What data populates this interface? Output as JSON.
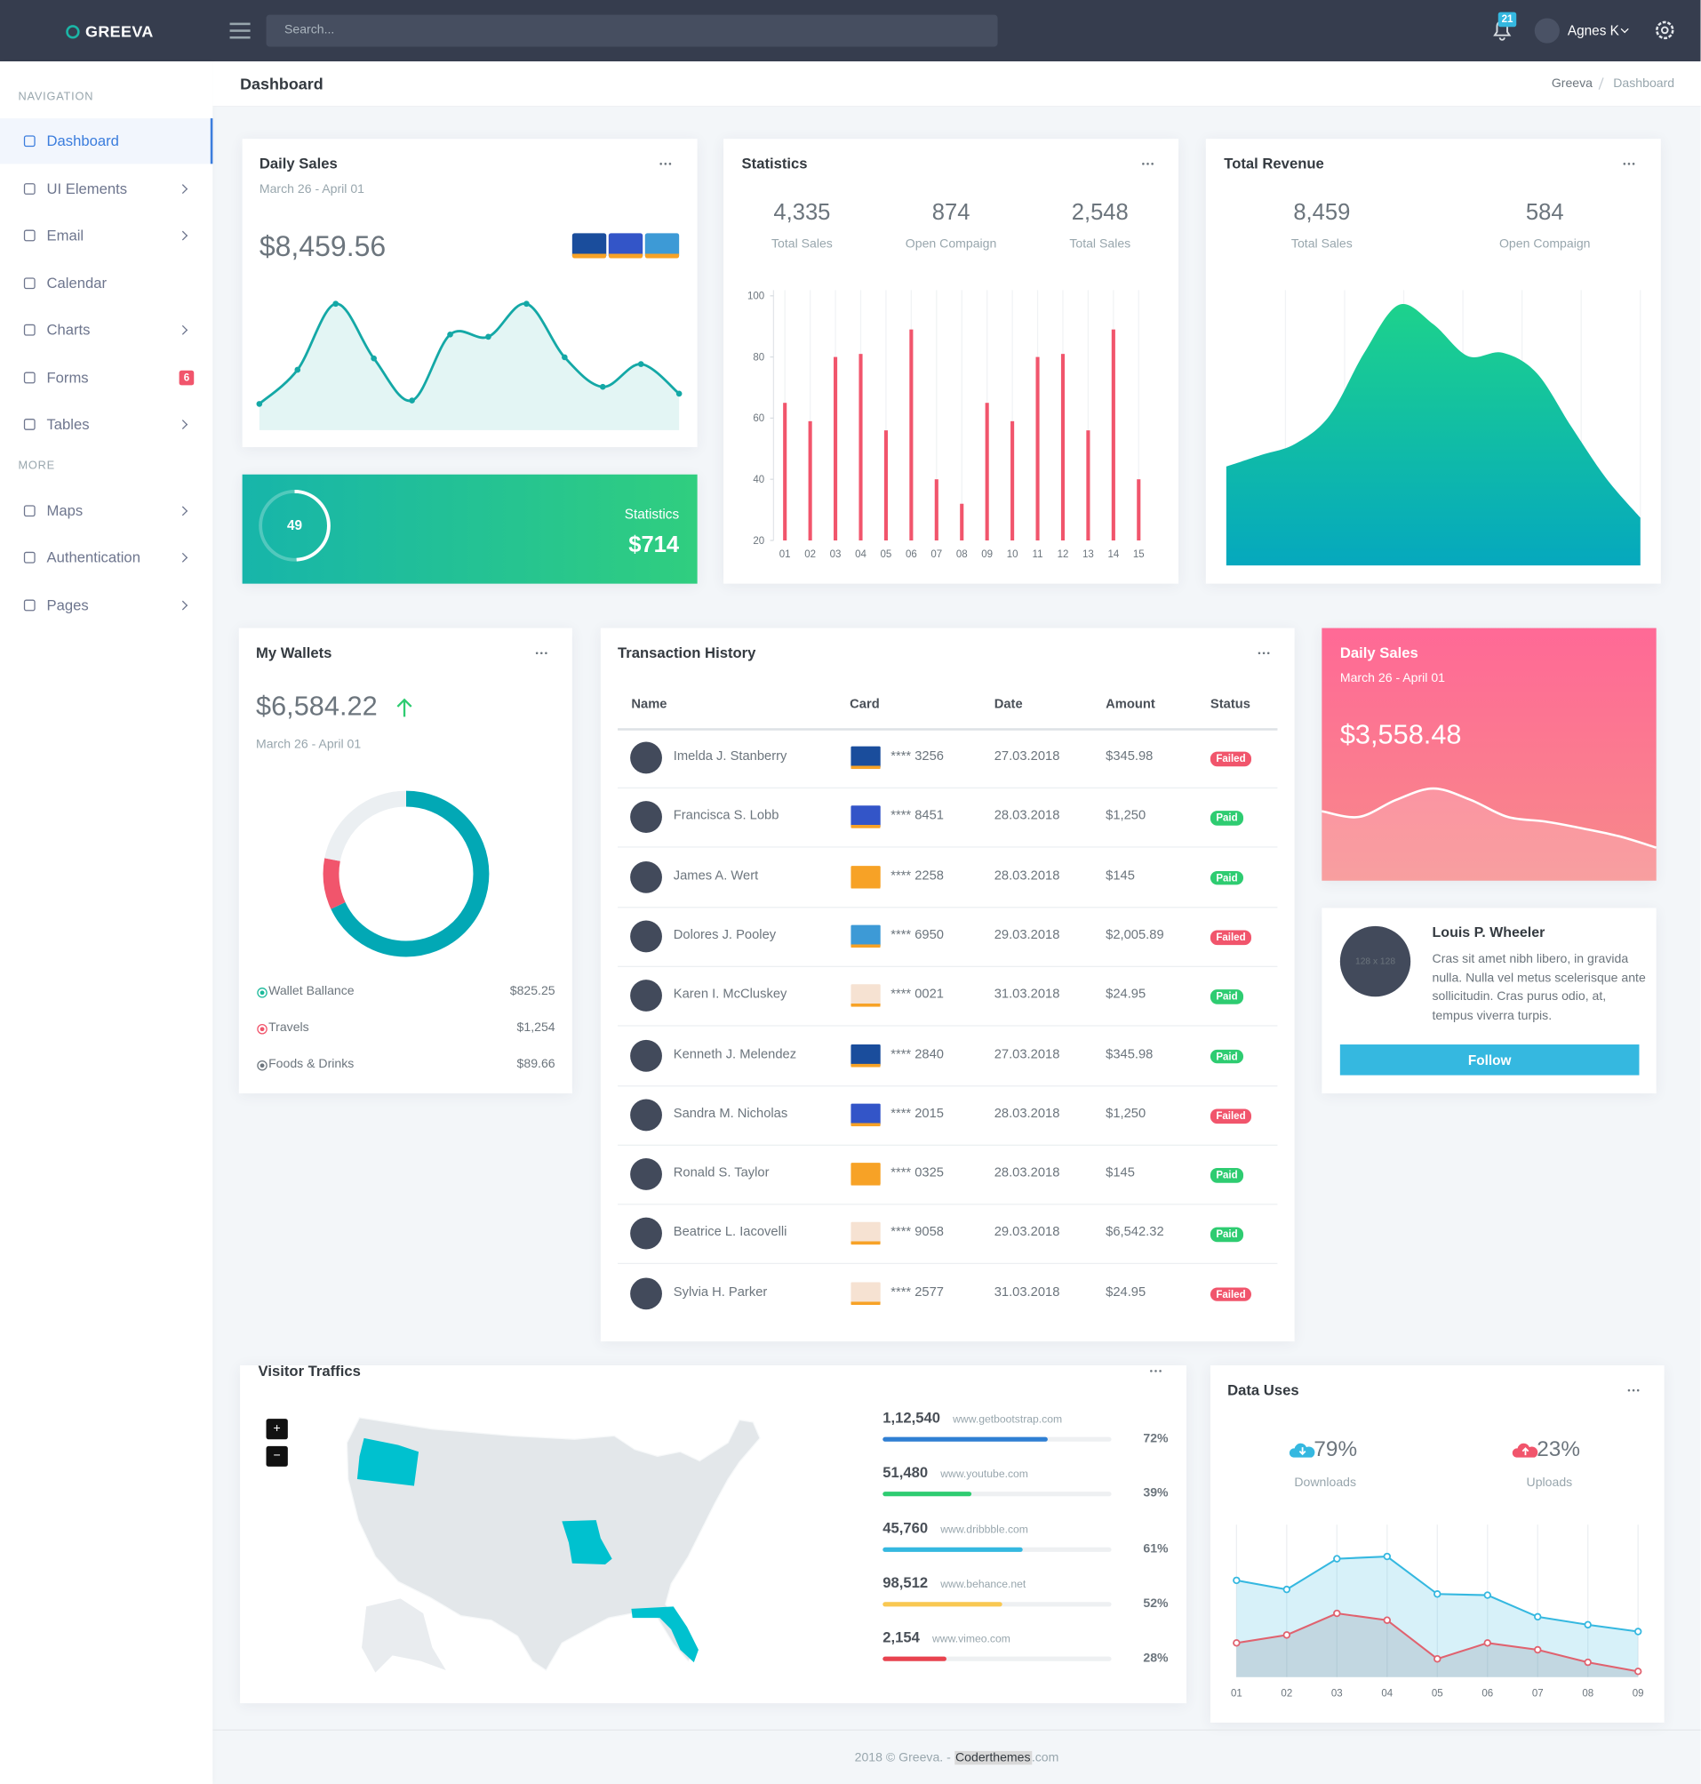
{
  "topbar": {
    "logo": "GREEVA",
    "search_placeholder": "Search...",
    "notifications": 21,
    "user": "Agnes K"
  },
  "sidebar": {
    "sections": [
      {
        "title": "NAVIGATION",
        "items": [
          {
            "label": "Dashboard",
            "active": true
          },
          {
            "label": "UI Elements",
            "has_submenu": true
          },
          {
            "label": "Email",
            "has_submenu": true
          },
          {
            "label": "Calendar"
          },
          {
            "label": "Charts",
            "has_submenu": true
          },
          {
            "label": "Forms",
            "badge": 6
          },
          {
            "label": "Tables",
            "has_submenu": true
          }
        ]
      },
      {
        "title": "MORE",
        "items": [
          {
            "label": "Maps",
            "has_submenu": true
          },
          {
            "label": "Authentication",
            "has_submenu": true
          },
          {
            "label": "Pages",
            "has_submenu": true
          }
        ]
      }
    ]
  },
  "page_header": {
    "title": "Dashboard",
    "breadcrumb": [
      "Greeva",
      "Dashboard"
    ]
  },
  "daily_sales": {
    "title": "Daily Sales",
    "subtitle": "March 26 - April 01",
    "amount": "$8,459.56",
    "chart": {
      "type": "line",
      "values": [
        23,
        53,
        111,
        63,
        26,
        84,
        82,
        111,
        64,
        38,
        58,
        32
      ],
      "color": "#14a8a6",
      "fill": "#e3f5f4"
    }
  },
  "statistics_widget": {
    "label": "Statistics",
    "amount": "$714",
    "progress": 49
  },
  "statistics": {
    "title": "Statistics",
    "stats": [
      {
        "value": "4,335",
        "label": "Total Sales"
      },
      {
        "value": "874",
        "label": "Open Compaign"
      },
      {
        "value": "2,548",
        "label": "Total Sales"
      }
    ],
    "chart": {
      "type": "bar",
      "categories": [
        "01",
        "02",
        "03",
        "04",
        "05",
        "06",
        "07",
        "08",
        "09",
        "10",
        "11",
        "12",
        "13",
        "14",
        "15"
      ],
      "values": [
        65,
        59,
        80,
        81,
        56,
        89,
        40,
        32,
        65,
        59,
        80,
        81,
        56,
        89,
        40
      ],
      "color": "#f1556c",
      "ylim": [
        20,
        100
      ],
      "yticks": [
        20,
        40,
        60,
        80,
        100
      ],
      "grid": true
    }
  },
  "total_revenue": {
    "title": "Total Revenue",
    "stats": [
      {
        "value": "8,459",
        "label": "Total Sales"
      },
      {
        "value": "584",
        "label": "Open Compaign"
      }
    ],
    "chart": {
      "type": "area",
      "values": [
        87,
        97,
        107,
        132,
        187,
        229,
        212,
        184,
        187,
        169,
        122,
        77,
        42
      ],
      "colors": [
        "#1dd28c",
        "#05a8be"
      ]
    }
  },
  "wallets": {
    "title": "My Wallets",
    "amount": "$6,584.22",
    "subtitle": "March 26 - April 01",
    "chart": {
      "type": "donut",
      "values": [
        68,
        10,
        22
      ],
      "colors": [
        "#02a8b5",
        "#f1556c",
        "#ebeff2"
      ]
    },
    "legend": [
      {
        "label": "Wallet Ballance",
        "value": "$825.25",
        "color": "#1bb99a"
      },
      {
        "label": "Travels",
        "value": "$1,254",
        "color": "#f1556c"
      },
      {
        "label": "Foods & Drinks",
        "value": "$89.66",
        "color": "#6c757d"
      }
    ]
  },
  "transactions": {
    "title": "Transaction History",
    "columns": [
      "Name",
      "Card",
      "Date",
      "Amount",
      "Status"
    ],
    "rows": [
      {
        "name": "Imelda J. Stanberry",
        "card": "**** 3256",
        "date": "27.03.2018",
        "amount": "$345.98",
        "status": "Failed",
        "status_color": "#f1556c",
        "card_color": "#1a4d9c"
      },
      {
        "name": "Francisca S. Lobb",
        "card": "**** 8451",
        "date": "28.03.2018",
        "amount": "$1,250",
        "status": "Paid",
        "status_color": "#2ecc71",
        "card_color": "#3355c8"
      },
      {
        "name": "James A. Wert",
        "card": "**** 2258",
        "date": "28.03.2018",
        "amount": "$145",
        "status": "Paid",
        "status_color": "#2ecc71",
        "card_color": "#f7a226"
      },
      {
        "name": "Dolores J. Pooley",
        "card": "**** 6950",
        "date": "29.03.2018",
        "amount": "$2,005.89",
        "status": "Failed",
        "status_color": "#f1556c",
        "card_color": "#3d9ad6"
      },
      {
        "name": "Karen I. McCluskey",
        "card": "**** 0021",
        "date": "31.03.2018",
        "amount": "$24.95",
        "status": "Paid",
        "status_color": "#2ecc71",
        "card_color": "#f6e2d2"
      },
      {
        "name": "Kenneth J. Melendez",
        "card": "**** 2840",
        "date": "27.03.2018",
        "amount": "$345.98",
        "status": "Paid",
        "status_color": "#2ecc71",
        "card_color": "#1a4d9c"
      },
      {
        "name": "Sandra M. Nicholas",
        "card": "**** 2015",
        "date": "28.03.2018",
        "amount": "$1,250",
        "status": "Failed",
        "status_color": "#f1556c",
        "card_color": "#3355c8"
      },
      {
        "name": "Ronald S. Taylor",
        "card": "**** 0325",
        "date": "28.03.2018",
        "amount": "$145",
        "status": "Paid",
        "status_color": "#2ecc71",
        "card_color": "#f7a226"
      },
      {
        "name": "Beatrice L. Iacovelli",
        "card": "**** 9058",
        "date": "29.03.2018",
        "amount": "$6,542.32",
        "status": "Paid",
        "status_color": "#2ecc71",
        "card_color": "#f6e2d2"
      },
      {
        "name": "Sylvia H. Parker",
        "card": "**** 2577",
        "date": "31.03.2018",
        "amount": "$24.95",
        "status": "Failed",
        "status_color": "#f1556c",
        "card_color": "#f6e2d2"
      }
    ]
  },
  "daily_sales_2": {
    "title": "Daily Sales",
    "subtitle": "March 26 - April 01",
    "amount": "$3,558.48",
    "chart": {
      "type": "area",
      "values": [
        61,
        56,
        71,
        81,
        71,
        56,
        52,
        46,
        39,
        29
      ],
      "color": "#ffffff"
    }
  },
  "profile": {
    "avatar_placeholder": "128 x 128",
    "name": "Louis P. Wheeler",
    "bio": "Cras sit amet nibh libero, in gravida nulla. Nulla vel metus scelerisque ante sollicitudin. Cras purus odio, at, tempus viverra turpis.",
    "button": "Follow"
  },
  "visitor_traffics": {
    "title": "Visitor Traffics",
    "zoom_in": "+",
    "zoom_out": "−",
    "sources": [
      {
        "count": "1,12,540",
        "url": "www.getbootstrap.com",
        "value": 72,
        "label": "72%",
        "color": "#2f7fd3"
      },
      {
        "count": "51,480",
        "url": "www.youtube.com",
        "value": 39,
        "label": "39%",
        "color": "#2ecc71"
      },
      {
        "count": "45,760",
        "url": "www.dribbble.com",
        "value": 61,
        "label": "61%",
        "color": "#35b8e0"
      },
      {
        "count": "98,512",
        "url": "www.behance.net",
        "value": 52,
        "label": "52%",
        "color": "#f9c851"
      },
      {
        "count": "2,154",
        "url": "www.vimeo.com",
        "value": 28,
        "label": "28%",
        "color": "#e8434f"
      }
    ]
  },
  "data_uses": {
    "title": "Data Uses",
    "stats": [
      {
        "value": "79%",
        "label": "Downloads",
        "color": "#35b8e0"
      },
      {
        "value": "23%",
        "label": "Uploads",
        "color": "#f1556c"
      }
    ],
    "chart": {
      "type": "line",
      "categories": [
        "01",
        "02",
        "03",
        "04",
        "05",
        "06",
        "07",
        "08",
        "09"
      ],
      "grid": true,
      "series": [
        {
          "values": [
            85,
            77,
            104,
            106,
            73,
            72,
            53,
            46,
            40
          ],
          "color": "#35b8e0",
          "fill": "rgba(53,184,224,0.2)"
        },
        {
          "values": [
            30,
            37,
            56,
            50,
            16,
            30,
            24,
            13,
            5
          ],
          "color": "#e0626f",
          "fill": "rgba(110,115,130,0.2)"
        }
      ]
    }
  },
  "footer": {
    "text": "2018 © Greeva. - ",
    "link": "Coderthemes",
    "suffix": ".com"
  }
}
